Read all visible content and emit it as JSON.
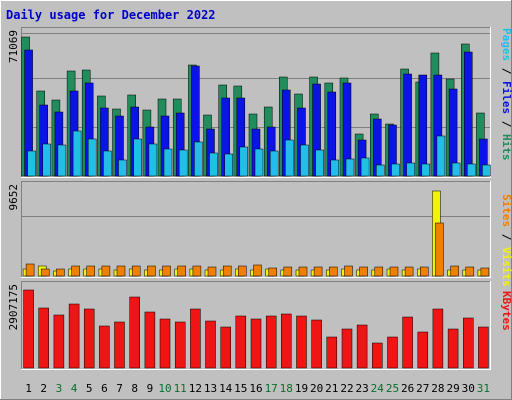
{
  "chart_data": {
    "type": "bar",
    "title": "Daily usage for December 2022",
    "categories": [
      "1",
      "2",
      "3",
      "4",
      "5",
      "6",
      "7",
      "8",
      "9",
      "10",
      "11",
      "12",
      "13",
      "14",
      "15",
      "16",
      "17",
      "18",
      "19",
      "20",
      "21",
      "22",
      "23",
      "24",
      "25",
      "26",
      "27",
      "28",
      "29",
      "30",
      "31"
    ],
    "weekend_days": [
      "3",
      "4",
      "10",
      "11",
      "17",
      "18",
      "24",
      "25",
      "31"
    ],
    "panels": [
      {
        "id": "hits-panel",
        "ymax_label": "71069",
        "ylim": [
          0,
          75000
        ],
        "legend": [
          "Pages",
          "Files",
          "Hits"
        ],
        "series": [
          {
            "name": "Hits",
            "color": "#218c5c",
            "values": [
              71069,
              43500,
              38600,
              53700,
              54300,
              41000,
              34300,
              41200,
              33700,
              39300,
              39300,
              56500,
              31000,
              46400,
              46000,
              31700,
              35300,
              50300,
              41800,
              50700,
              47300,
              49800,
              21200,
              31700,
              26600,
              54700,
              47900,
              62600,
              49700,
              67500,
              31900
            ]
          },
          {
            "name": "Files",
            "color": "#0a14e6",
            "values": [
              64500,
              36200,
              32800,
              43600,
              47200,
              34700,
              30400,
              35000,
              25000,
              30700,
              32000,
              56300,
              23900,
              39600,
              39600,
              24100,
              25100,
              44100,
              34900,
              47100,
              42700,
              47200,
              18600,
              29300,
              25800,
              52100,
              51300,
              51300,
              44400,
              63500,
              18900
            ]
          },
          {
            "name": "Pages",
            "color": "#21bfe8",
            "values": [
              12700,
              16100,
              15600,
              22900,
              19100,
              12600,
              8400,
              19000,
              16300,
              13900,
              13400,
              17400,
              11600,
              11100,
              14800,
              13900,
              12600,
              18400,
              15700,
              13200,
              8200,
              8700,
              9400,
              5700,
              5900,
              6600,
              6200,
              20400,
              6600,
              6300,
              5700
            ]
          }
        ]
      },
      {
        "id": "visits-panel",
        "ymax_label": "9652",
        "ylim": [
          0,
          10600
        ],
        "legend": [
          "Sites",
          "Visits"
        ],
        "series": [
          {
            "name": "Visits",
            "color": "#f2f20a",
            "values": [
              820,
              1100,
              560,
              780,
              820,
              830,
              740,
              760,
              710,
              730,
              760,
              800,
              650,
              700,
              770,
              650,
              800,
              700,
              680,
              720,
              730,
              750,
              640,
              740,
              750,
              740,
              760,
              9652,
              700,
              680,
              650
            ]
          },
          {
            "name": "Sites",
            "color": "#f08000",
            "values": [
              1350,
              780,
              850,
              1100,
              1100,
              1100,
              1100,
              1100,
              1100,
              1100,
              1100,
              1100,
              1050,
              1100,
              1100,
              1200,
              900,
              1000,
              1000,
              1000,
              1000,
              1100,
              1000,
              1000,
              1000,
              1000,
              1000,
              6000,
              1100,
              1000,
              900
            ]
          }
        ]
      },
      {
        "id": "kbytes-panel",
        "ymax_label": "2907175",
        "ylim": [
          0,
          3150000
        ],
        "legend": [
          "KBytes"
        ],
        "series": [
          {
            "name": "KBytes",
            "color": "#ef1515",
            "values": [
              2907175,
              2210000,
              1960000,
              2360000,
              2170000,
              1560000,
              1690000,
              2640000,
              2070000,
              1800000,
              1710000,
              2190000,
              1760000,
              1530000,
              1930000,
              1830000,
              1920000,
              1990000,
              1930000,
              1770000,
              1150000,
              1450000,
              1580000,
              940000,
              1160000,
              1900000,
              1350000,
              2190000,
              1450000,
              1870000,
              1520000
            ]
          }
        ]
      }
    ],
    "legend_placement": "right",
    "grid": true
  },
  "colors": {
    "background": "#c0c0c0",
    "plot_bg": "#c0c0c0",
    "title_color": "#0000cc",
    "label_color": "#000000",
    "weekend_color": "#0a6e2a"
  }
}
